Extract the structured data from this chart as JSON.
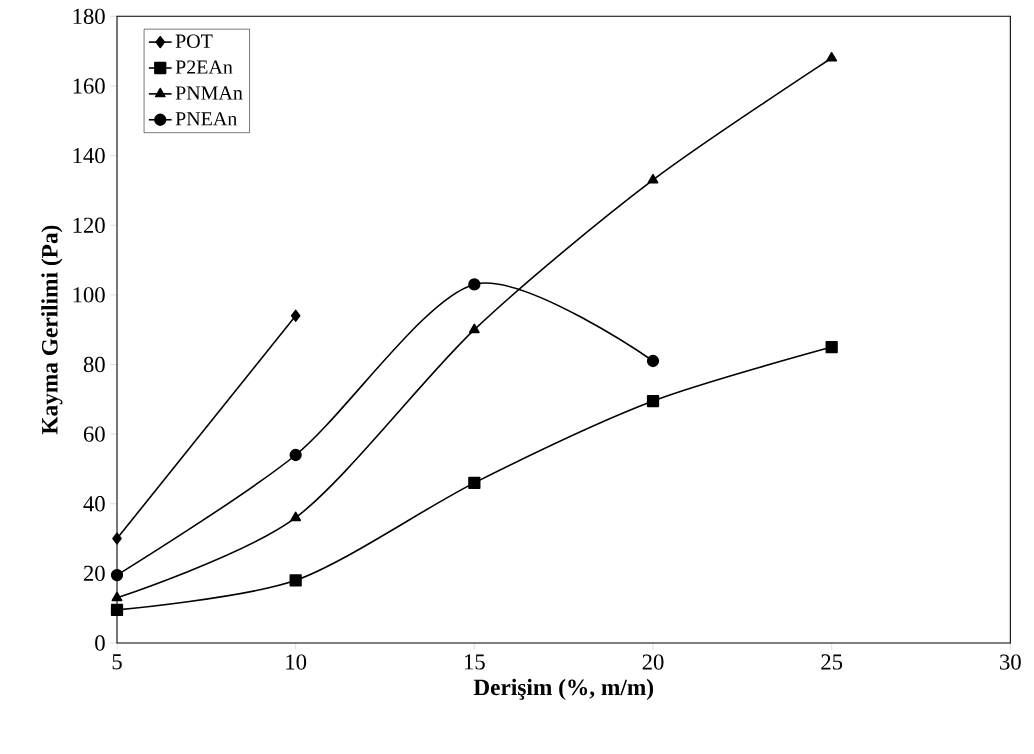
{
  "chart_data": {
    "type": "line",
    "xlabel": "Derişim (%, m/m)",
    "ylabel": "Kayma Gerilimi (Pa)",
    "xlim": [
      5,
      30
    ],
    "xticks": [
      5,
      10,
      15,
      20,
      25,
      30
    ],
    "ylim": [
      0,
      180
    ],
    "yticks": [
      0,
      20,
      40,
      60,
      80,
      100,
      120,
      140,
      160,
      180
    ],
    "grid": false,
    "legend": "top left",
    "line_style": "solid",
    "series": [
      {
        "name": "POT",
        "color": "#000000",
        "marker": "diamond",
        "x": [
          5,
          10
        ],
        "values": [
          30,
          94
        ]
      },
      {
        "name": "P2EAn",
        "color": "#000000",
        "marker": "square",
        "x": [
          5,
          10,
          15,
          20,
          25
        ],
        "values": [
          9.5,
          18,
          46,
          69.5,
          85
        ]
      },
      {
        "name": "PNMAn",
        "color": "#000000",
        "marker": "triangle",
        "x": [
          5,
          10,
          15,
          20,
          25
        ],
        "values": [
          13,
          36,
          90,
          133,
          168
        ]
      },
      {
        "name": "PNEAn",
        "color": "#000000",
        "marker": "circle",
        "x": [
          5,
          10,
          15,
          20
        ],
        "values": [
          19.5,
          54,
          103,
          81
        ]
      }
    ]
  }
}
